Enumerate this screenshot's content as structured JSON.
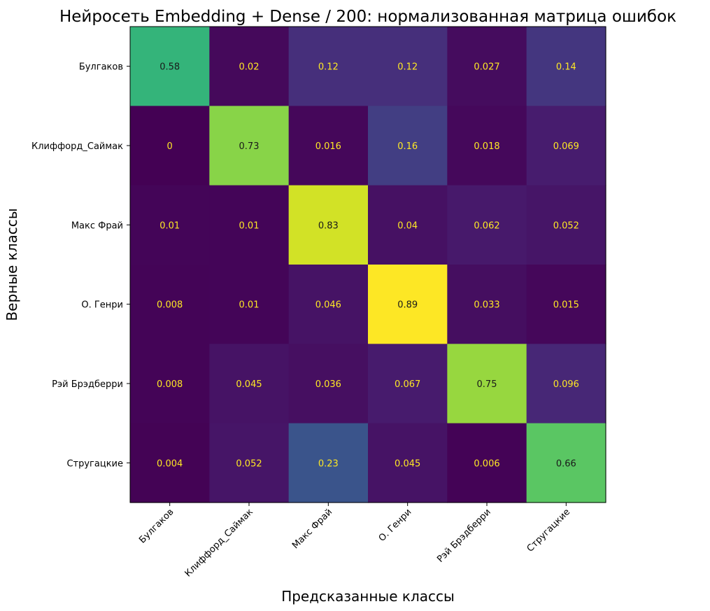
{
  "chart_data": {
    "type": "heatmap",
    "title": "Нейросеть Embedding + Dense / 200: нормализованная матрица ошибок",
    "xlabel": "Предсказанные классы",
    "ylabel": "Верные классы",
    "x_categories": [
      "Булгаков",
      "Клиффорд_Саймак",
      "Макс Фрай",
      "О. Генри",
      "Рэй Брэдберри",
      "Стругацкие"
    ],
    "y_categories": [
      "Булгаков",
      "Клиффорд_Саймак",
      "Макс Фрай",
      "О. Генри",
      "Рэй Брэдберри",
      "Стругацкие"
    ],
    "cell_labels": [
      [
        "0.58",
        "0.02",
        "0.12",
        "0.12",
        "0.027",
        "0.14"
      ],
      [
        "0",
        "0.73",
        "0.016",
        "0.16",
        "0.018",
        "0.069"
      ],
      [
        "0.01",
        "0.01",
        "0.83",
        "0.04",
        "0.062",
        "0.052"
      ],
      [
        "0.008",
        "0.01",
        "0.046",
        "0.89",
        "0.033",
        "0.015"
      ],
      [
        "0.008",
        "0.045",
        "0.036",
        "0.067",
        "0.75",
        "0.096"
      ],
      [
        "0.004",
        "0.052",
        "0.23",
        "0.045",
        "0.006",
        "0.66"
      ]
    ],
    "values": [
      [
        0.58,
        0.02,
        0.12,
        0.12,
        0.027,
        0.14
      ],
      [
        0,
        0.73,
        0.016,
        0.16,
        0.018,
        0.069
      ],
      [
        0.01,
        0.01,
        0.83,
        0.04,
        0.062,
        0.052
      ],
      [
        0.008,
        0.01,
        0.046,
        0.89,
        0.033,
        0.015
      ],
      [
        0.008,
        0.045,
        0.036,
        0.067,
        0.75,
        0.096
      ],
      [
        0.004,
        0.052,
        0.23,
        0.045,
        0.006,
        0.66
      ]
    ],
    "colormap": "viridis",
    "grid": false,
    "legend": "none",
    "colors": {
      "text_on_dark": "#fde725",
      "text_on_light": "#1a1a1a",
      "axis": "#000000"
    }
  }
}
